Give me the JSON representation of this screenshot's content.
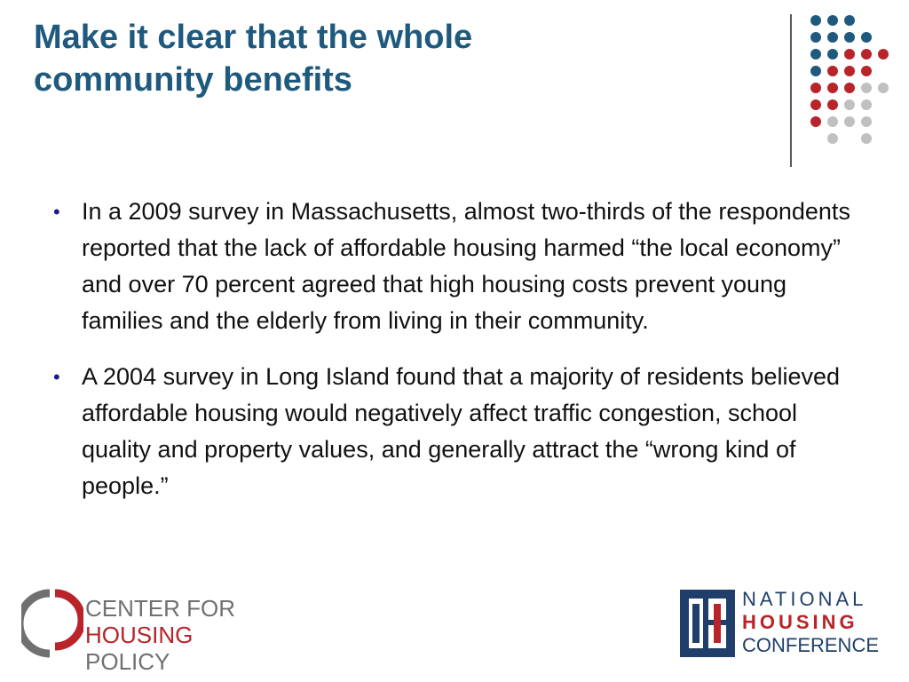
{
  "title": {
    "line1": "Make it clear that the whole",
    "line2": "community benefits"
  },
  "bullets": [
    {
      "marker": "•",
      "text": "In a 2009 survey in Massachusetts, almost two-thirds of the respondents reported that the lack of affordable housing harmed “the local economy” and over 70 percent agreed that high housing costs prevent young families and the elderly from living in their community."
    },
    {
      "marker": "•",
      "text": "A 2004 survey in Long Island found that a majority of residents believed affordable housing would negatively affect traffic congestion, school quality and property values, and generally attract the “wrong kind of people.”"
    }
  ],
  "logos": {
    "center_for_housing_policy": {
      "line1": "CENTER FOR",
      "line2_strong": "HOUSING",
      "line2_rest": " POLICY"
    },
    "national_housing_conference": {
      "line1": "NATIONAL",
      "line2": "HOUSING",
      "line3": "CONFERENCE"
    }
  },
  "colors": {
    "title": "#1f5a7e",
    "dot_blue": "#1f5a7e",
    "dot_red": "#b8242a",
    "dot_gray": "#c0c0c0",
    "bullet_marker": "#1d1d8a"
  },
  "icons": [
    "dot-grid-decoration",
    "chp-logo-mark",
    "nhc-logo-mark"
  ]
}
